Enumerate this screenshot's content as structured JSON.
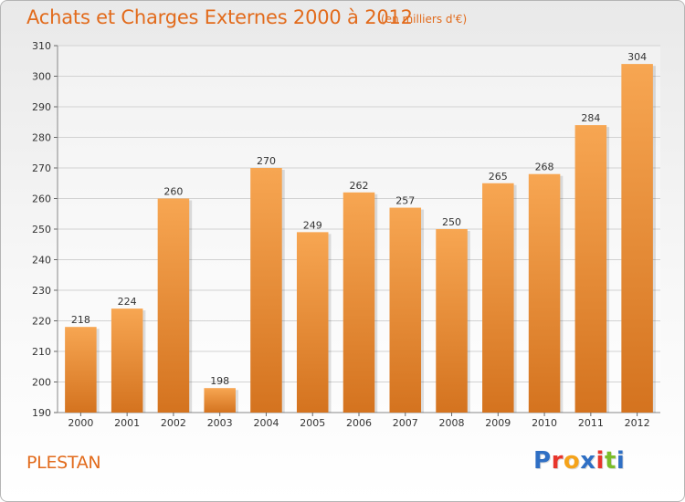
{
  "header": {
    "title": "Achats et Charges Externes 2000 à 2012",
    "unit": "(en milliers d'€)"
  },
  "footer": {
    "commune": "PLESTAN",
    "logo_text": "Proxiti",
    "logo_colors": [
      "#2f6fc4",
      "#e8352b",
      "#f5a31a",
      "#2f6fc4",
      "#e8352b",
      "#7bbd2a",
      "#2f6fc4"
    ]
  },
  "colors": {
    "accent": "#e26b1c",
    "bar_top": "#f7a652",
    "bar_bottom": "#d4731f"
  },
  "chart_data": {
    "type": "bar",
    "title": "Achats et Charges Externes 2000 à 2012",
    "subtitle": "(en milliers d'€)",
    "categories": [
      "2000",
      "2001",
      "2002",
      "2003",
      "2004",
      "2005",
      "2006",
      "2007",
      "2008",
      "2009",
      "2010",
      "2011",
      "2012"
    ],
    "values": [
      218,
      224,
      260,
      198,
      270,
      249,
      262,
      257,
      250,
      265,
      268,
      284,
      304
    ],
    "ylim": [
      190,
      310
    ],
    "yticks": [
      190,
      200,
      210,
      220,
      230,
      240,
      250,
      260,
      270,
      280,
      290,
      300,
      310
    ],
    "grid": true,
    "xlabel": "",
    "ylabel": ""
  }
}
